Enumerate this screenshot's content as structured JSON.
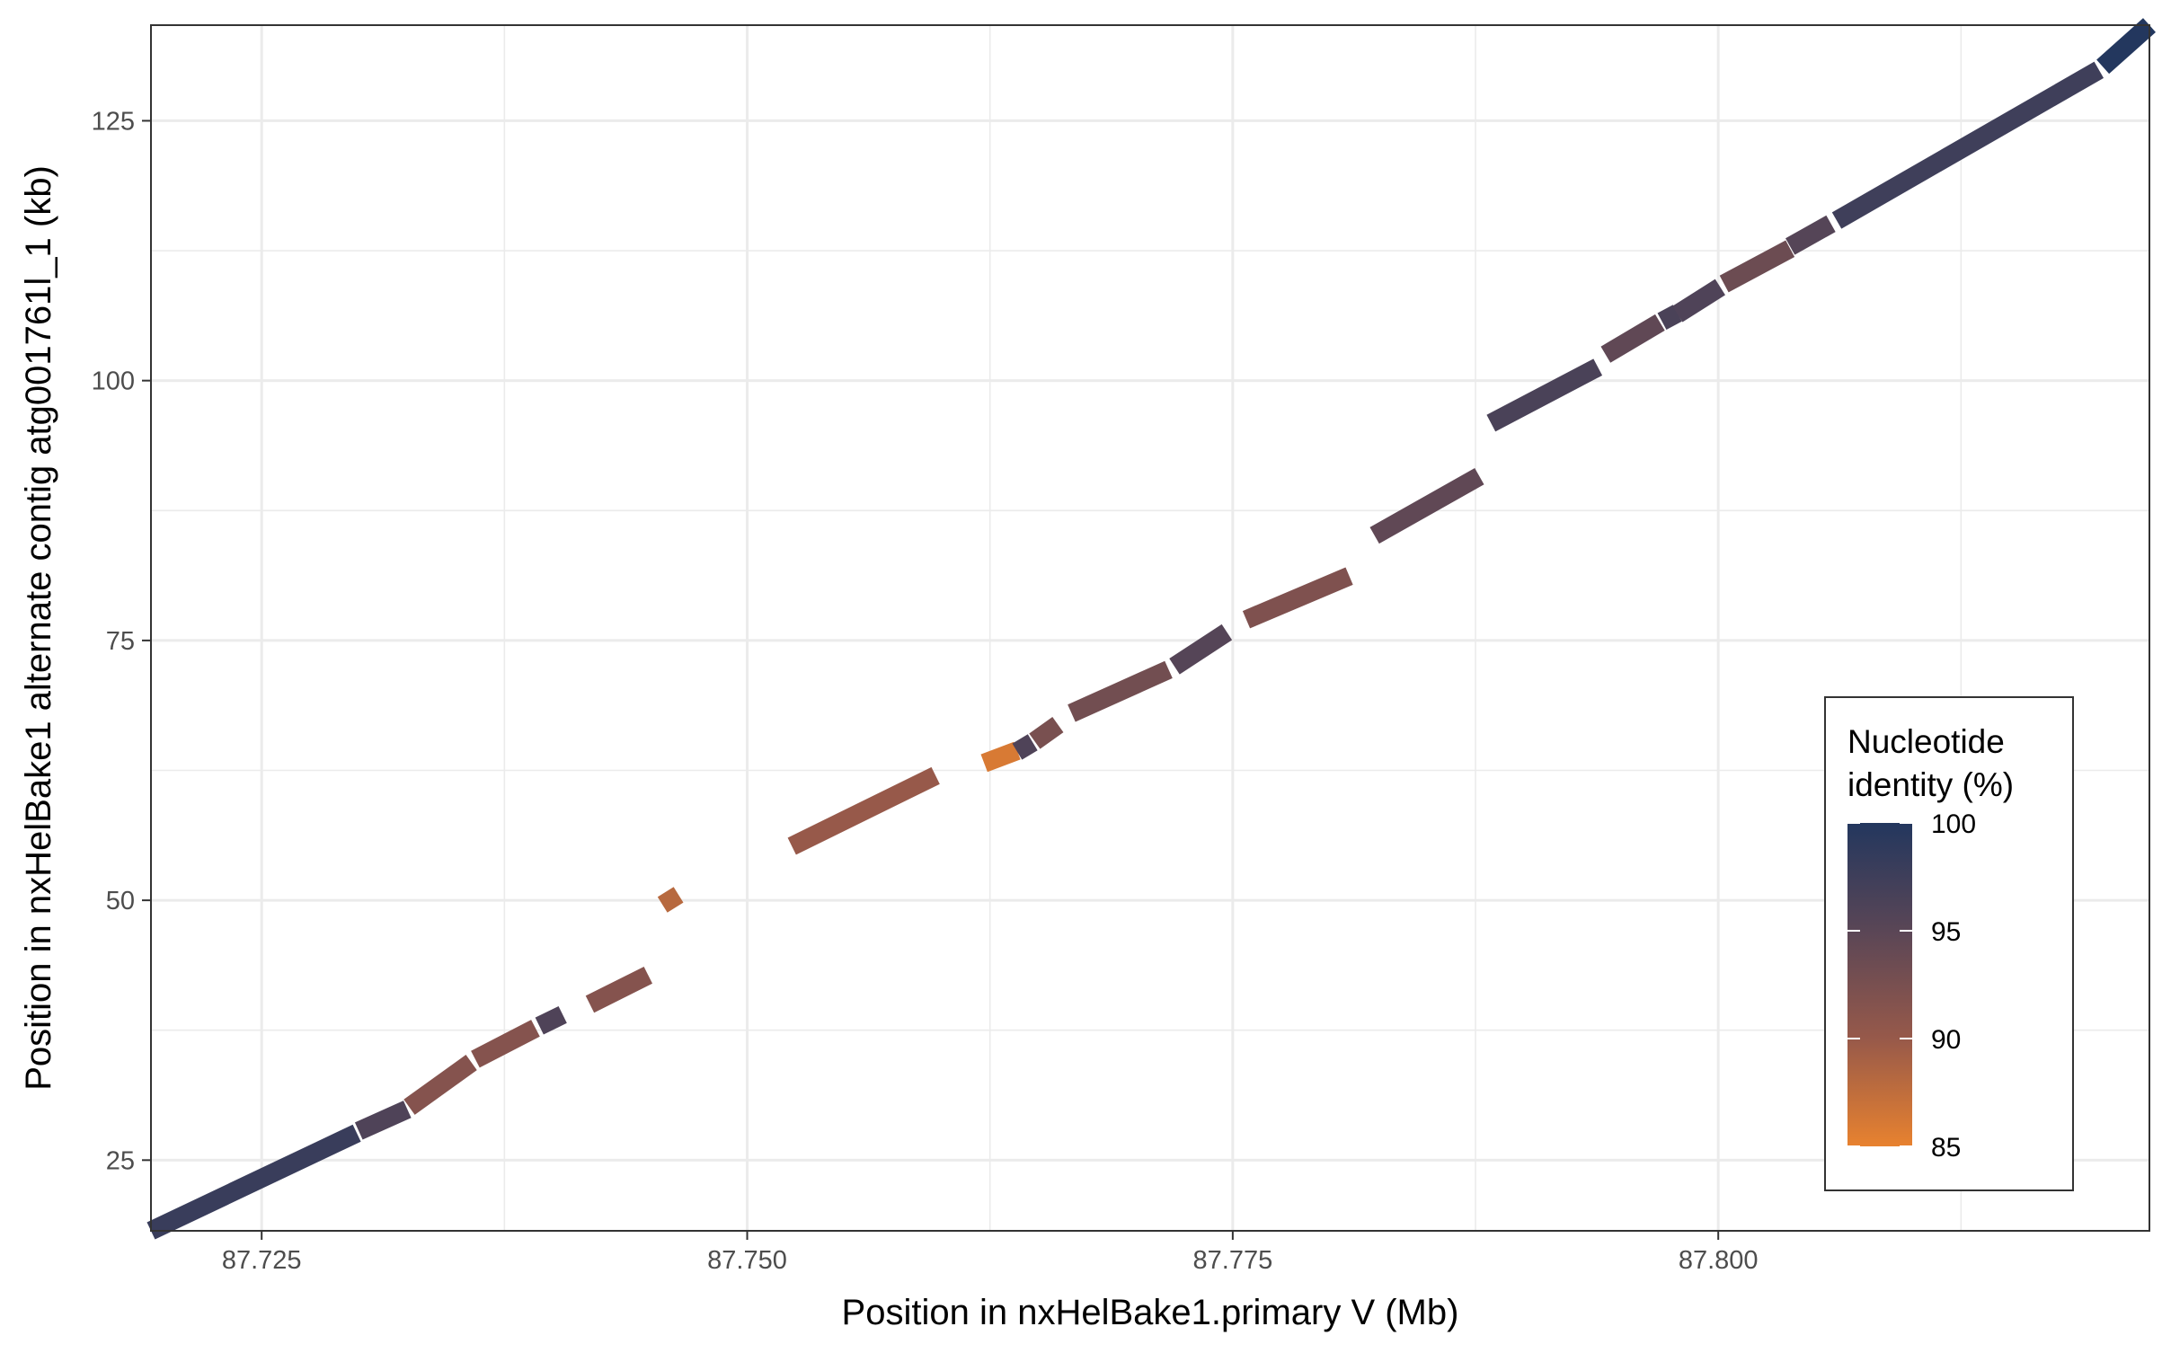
{
  "chart_data": {
    "type": "scatter",
    "title": "",
    "xlabel": "Position in nxHelBake1.primary V (Mb)",
    "ylabel": "Position in nxHelBake1 alternate contig atg001761l_1 (kb)",
    "xlim": [
      87.7193,
      87.8222
    ],
    "ylim": [
      18.2,
      134.2
    ],
    "x_ticks": [
      "87.725",
      "87.750",
      "87.775",
      "87.800"
    ],
    "x_tick_values": [
      87.725,
      87.75,
      87.775,
      87.8
    ],
    "y_ticks": [
      "25",
      "50",
      "75",
      "100",
      "125"
    ],
    "y_tick_values": [
      25,
      50,
      75,
      100,
      125
    ],
    "grid": true,
    "legend": {
      "title_lines": [
        "Nucleotide",
        "identity (%)"
      ],
      "labels": [
        "100",
        "95",
        "90",
        "85"
      ],
      "values": [
        100,
        95,
        90,
        85
      ],
      "range": [
        85,
        100
      ],
      "placement": "bottom-right",
      "colors": [
        "#23375e",
        "#5a4656",
        "#97594a",
        "#e8822f"
      ]
    },
    "segments": [
      {
        "x1": 87.7193,
        "y1": 18.2,
        "x2": 87.7299,
        "y2": 27.6,
        "identity": 98
      },
      {
        "x1": 87.73,
        "y1": 27.8,
        "x2": 87.7325,
        "y2": 29.9,
        "identity": 96
      },
      {
        "x1": 87.7326,
        "y1": 30.1,
        "x2": 87.7358,
        "y2": 34.4,
        "identity": 91.5
      },
      {
        "x1": 87.736,
        "y1": 34.7,
        "x2": 87.7391,
        "y2": 37.7,
        "identity": 91.5
      },
      {
        "x1": 87.7393,
        "y1": 37.9,
        "x2": 87.7405,
        "y2": 39.0,
        "identity": 96
      },
      {
        "x1": 87.7419,
        "y1": 40.0,
        "x2": 87.7449,
        "y2": 42.8,
        "identity": 91.5
      },
      {
        "x1": 87.7458,
        "y1": 50.8,
        "x2": 87.7463,
        "y2": 49.3,
        "identity": 88
      },
      {
        "x1": 87.7523,
        "y1": 55.2,
        "x2": 87.7597,
        "y2": 62.0,
        "identity": 90
      },
      {
        "x1": 87.7622,
        "y1": 63.2,
        "x2": 87.7639,
        "y2": 64.4,
        "identity": 86
      },
      {
        "x1": 87.7639,
        "y1": 64.3,
        "x2": 87.7647,
        "y2": 65.2,
        "identity": 96
      },
      {
        "x1": 87.7648,
        "y1": 65.3,
        "x2": 87.766,
        "y2": 66.9,
        "identity": 92.5
      },
      {
        "x1": 87.7667,
        "y1": 68.0,
        "x2": 87.7717,
        "y2": 72.2,
        "identity": 93
      },
      {
        "x1": 87.772,
        "y1": 72.5,
        "x2": 87.7747,
        "y2": 75.8,
        "identity": 95.5
      },
      {
        "x1": 87.7757,
        "y1": 77.0,
        "x2": 87.781,
        "y2": 81.2,
        "identity": 92
      },
      {
        "x1": 87.7823,
        "y1": 85.1,
        "x2": 87.7877,
        "y2": 90.8,
        "identity": 94.5
      },
      {
        "x1": 87.7883,
        "y1": 95.9,
        "x2": 87.7938,
        "y2": 101.3,
        "identity": 96.5
      },
      {
        "x1": 87.7942,
        "y1": 102.5,
        "x2": 87.797,
        "y2": 105.6,
        "identity": 94.5
      },
      {
        "x1": 87.7971,
        "y1": 105.7,
        "x2": 87.7979,
        "y2": 106.5,
        "identity": 96.5
      },
      {
        "x1": 87.7979,
        "y1": 106.4,
        "x2": 87.8001,
        "y2": 109.0,
        "identity": 96
      },
      {
        "x1": 87.8003,
        "y1": 109.3,
        "x2": 87.8037,
        "y2": 112.7,
        "identity": 93.5
      },
      {
        "x1": 87.8037,
        "y1": 112.9,
        "x2": 87.8058,
        "y2": 115.1,
        "identity": 95.5
      },
      {
        "x1": 87.8061,
        "y1": 115.4,
        "x2": 87.8196,
        "y2": 129.9,
        "identity": 97.5
      },
      {
        "x1": 87.8198,
        "y1": 130.2,
        "x2": 87.8222,
        "y2": 134.2,
        "identity": 100
      }
    ]
  }
}
